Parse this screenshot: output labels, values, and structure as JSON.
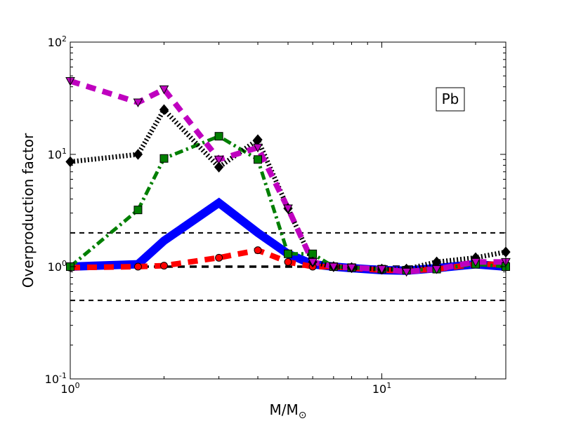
{
  "chart_data": {
    "type": "line",
    "annotation": "Pb",
    "xlabel": {
      "main": "M/M",
      "sub": "⊙"
    },
    "ylabel": "Overproduction factor",
    "xscale": "log",
    "yscale": "log",
    "xlim": [
      1,
      25
    ],
    "ylim": [
      0.1,
      100
    ],
    "xticks": [
      {
        "value": 1,
        "base": "10",
        "exp": "0"
      },
      {
        "value": 10,
        "base": "10",
        "exp": "1"
      }
    ],
    "yticks": [
      {
        "value": 0.1,
        "base": "10",
        "exp": "-1"
      },
      {
        "value": 1,
        "base": "10",
        "exp": "0"
      },
      {
        "value": 10,
        "base": "10",
        "exp": "1"
      },
      {
        "value": 100,
        "base": "10",
        "exp": "2"
      }
    ],
    "reference_lines": [
      {
        "y": 2,
        "color": "#000000",
        "style": "dashed"
      },
      {
        "y": 1,
        "color": "#000000",
        "style": "dashed-thick"
      },
      {
        "y": 0.5,
        "color": "#000000",
        "style": "dashed"
      }
    ],
    "series": [
      {
        "color": "#0000ff",
        "style": "solid",
        "marker": "none",
        "points": [
          [
            1,
            1.0
          ],
          [
            1.65,
            1.05
          ],
          [
            2,
            1.7
          ],
          [
            3,
            3.7
          ],
          [
            4,
            2.0
          ],
          [
            5,
            1.3
          ],
          [
            6,
            1.05
          ],
          [
            7,
            1.0
          ],
          [
            8,
            0.97
          ],
          [
            10,
            0.93
          ],
          [
            12,
            0.92
          ],
          [
            15,
            0.97
          ],
          [
            20,
            1.05
          ],
          [
            25,
            1.0
          ]
        ]
      },
      {
        "color": "#ff0000",
        "style": "dashed",
        "marker": "circle",
        "points": [
          [
            1,
            0.98
          ],
          [
            1.65,
            1.0
          ],
          [
            2,
            1.02
          ],
          [
            3,
            1.2
          ],
          [
            4,
            1.4
          ],
          [
            5,
            1.1
          ],
          [
            6,
            1.0
          ],
          [
            7,
            1.0
          ],
          [
            8,
            0.97
          ],
          [
            10,
            0.93
          ],
          [
            12,
            0.92
          ],
          [
            15,
            0.95
          ],
          [
            20,
            1.05
          ],
          [
            25,
            1.05
          ]
        ]
      },
      {
        "color": "#007f00",
        "style": "dashdot",
        "marker": "square",
        "points": [
          [
            1,
            1.0
          ],
          [
            1.65,
            3.2
          ],
          [
            2,
            9.2
          ],
          [
            3,
            14.5
          ],
          [
            4,
            9.0
          ],
          [
            5,
            1.3
          ],
          [
            6,
            1.3
          ],
          [
            7,
            1.0
          ],
          [
            8,
            0.98
          ],
          [
            10,
            0.95
          ],
          [
            12,
            0.93
          ],
          [
            15,
            0.95
          ],
          [
            20,
            1.05
          ],
          [
            25,
            1.0
          ]
        ]
      },
      {
        "color": "#000000",
        "style": "dotted",
        "marker": "diamond",
        "points": [
          [
            1,
            8.6
          ],
          [
            1.65,
            10.0
          ],
          [
            2,
            25.0
          ],
          [
            3,
            7.7
          ],
          [
            4,
            13.5
          ],
          [
            5,
            3.3
          ],
          [
            6,
            1.1
          ],
          [
            7,
            1.0
          ],
          [
            8,
            0.98
          ],
          [
            10,
            0.95
          ],
          [
            12,
            0.95
          ],
          [
            15,
            1.1
          ],
          [
            20,
            1.2
          ],
          [
            25,
            1.35
          ]
        ]
      },
      {
        "color": "#bf00bf",
        "style": "dashed",
        "marker": "triangle-down",
        "points": [
          [
            1,
            45.0
          ],
          [
            1.65,
            29.0
          ],
          [
            2,
            38.0
          ],
          [
            3,
            9.0
          ],
          [
            4,
            11.5
          ],
          [
            5,
            3.3
          ],
          [
            6,
            1.1
          ],
          [
            7,
            1.0
          ],
          [
            8,
            0.98
          ],
          [
            10,
            0.95
          ],
          [
            12,
            0.9
          ],
          [
            15,
            0.95
          ],
          [
            20,
            1.1
          ],
          [
            25,
            1.1
          ]
        ]
      }
    ]
  }
}
